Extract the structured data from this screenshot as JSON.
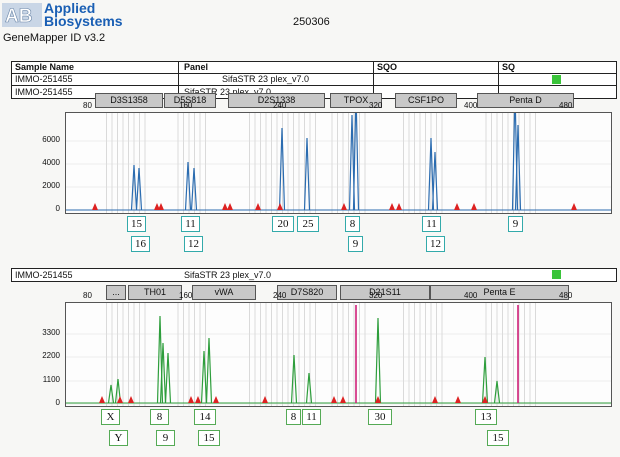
{
  "header": {
    "brand_line1": "Applied",
    "brand_line2": "Biosystems",
    "app_name": "GeneMapper ID v3.2",
    "run_id": "250306"
  },
  "table": {
    "col_sample": "Sample Name",
    "col_panel": "Panel",
    "col_sqo": "SQO",
    "col_sq": "SQ",
    "sample_name": "IMMO-251455",
    "panel_name": "SifaSTR 23 plex_v7.0"
  },
  "colors": {
    "blue": "#2b6cb0",
    "green": "#2e9e3c",
    "red": "#d22",
    "magenta": "#d0207a",
    "status": "#3ac43a"
  },
  "panels": [
    {
      "sample": "IMMO-251455",
      "panel": "SifaSTR 23 plex_v7.0",
      "markers": [
        "D3S1358",
        "D5S818",
        "D2S1338",
        "TPOX",
        "CSF1PO",
        "Penta D"
      ],
      "x_ticks": [
        "80",
        "160",
        "240",
        "320",
        "400",
        "480"
      ],
      "y_ticks": [
        "6000",
        "4000",
        "2000",
        "0"
      ],
      "alleles_top": [
        "15",
        "11",
        "20",
        "25",
        "8",
        "11",
        "9"
      ],
      "alleles_bottom": [
        "16",
        "12",
        "9",
        "12"
      ]
    },
    {
      "sample": "IMMO-251455",
      "panel": "SifaSTR 23 plex_v7.0",
      "markers": [
        "...",
        "TH01",
        "vWA",
        "D7S820",
        "D21S11",
        "Penta E"
      ],
      "x_ticks": [
        "80",
        "160",
        "240",
        "320",
        "400",
        "480"
      ],
      "y_ticks": [
        "3300",
        "2200",
        "1100",
        "0"
      ],
      "alleles_top": [
        "X",
        "8",
        "14",
        "8",
        "11",
        "30",
        "13"
      ],
      "alleles_bottom": [
        "Y",
        "9",
        "15",
        "15"
      ]
    }
  ]
}
